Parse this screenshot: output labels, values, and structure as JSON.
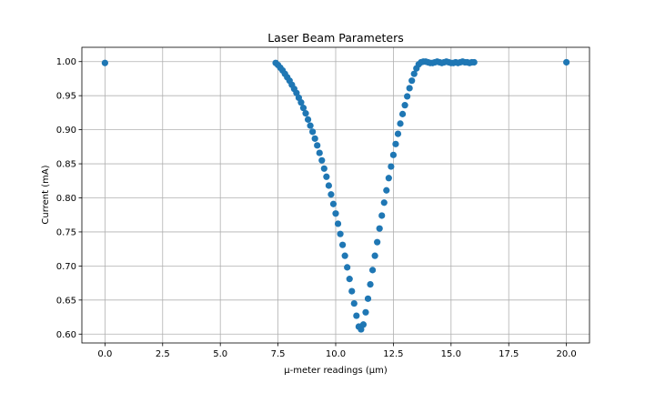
{
  "chart_data": {
    "type": "scatter",
    "title": "Laser Beam Parameters",
    "xlabel": "μ-meter readings (μm)",
    "ylabel": "Current (mA)",
    "xlim": [
      -1.0,
      21.0
    ],
    "ylim": [
      0.587,
      1.021
    ],
    "xticks": [
      "0.0",
      "2.5",
      "5.0",
      "7.5",
      "10.0",
      "12.5",
      "15.0",
      "17.5",
      "20.0"
    ],
    "yticks": [
      "0.60",
      "0.65",
      "0.70",
      "0.75",
      "0.80",
      "0.85",
      "0.90",
      "0.95",
      "1.00"
    ],
    "grid": true,
    "legend": null,
    "color": "#1f77b4",
    "series": [
      {
        "x": [
          0.0,
          7.4,
          7.5,
          7.6,
          7.7,
          7.8,
          7.9,
          8.0,
          8.1,
          8.2,
          8.3,
          8.4,
          8.5,
          8.6,
          8.7,
          8.8,
          8.9,
          9.0,
          9.1,
          9.2,
          9.3,
          9.4,
          9.5,
          9.6,
          9.7,
          9.8,
          9.9,
          10.0,
          10.1,
          10.2,
          10.3,
          10.4,
          10.5,
          10.6,
          10.7,
          10.8,
          10.9,
          11.0,
          11.1,
          11.2,
          11.3,
          11.4,
          11.5,
          11.6,
          11.7,
          11.8,
          11.9,
          12.0,
          12.1,
          12.2,
          12.3,
          12.4,
          12.5,
          12.6,
          12.7,
          12.8,
          12.9,
          13.0,
          13.1,
          13.2,
          13.3,
          13.4,
          13.5,
          13.6,
          13.7,
          13.8,
          13.9,
          14.0,
          14.1,
          14.2,
          14.3,
          14.4,
          14.5,
          14.6,
          14.7,
          14.8,
          14.9,
          15.0,
          15.1,
          15.2,
          15.3,
          15.4,
          15.5,
          15.6,
          15.7,
          15.8,
          15.9,
          16.0,
          20.0
        ],
        "y": [
          0.998,
          0.998,
          0.995,
          0.991,
          0.987,
          0.982,
          0.977,
          0.972,
          0.966,
          0.96,
          0.954,
          0.947,
          0.94,
          0.932,
          0.924,
          0.915,
          0.906,
          0.897,
          0.887,
          0.877,
          0.866,
          0.855,
          0.843,
          0.831,
          0.818,
          0.805,
          0.791,
          0.777,
          0.762,
          0.747,
          0.731,
          0.715,
          0.698,
          0.681,
          0.663,
          0.645,
          0.627,
          0.611,
          0.607,
          0.614,
          0.632,
          0.652,
          0.673,
          0.694,
          0.715,
          0.735,
          0.755,
          0.774,
          0.793,
          0.811,
          0.829,
          0.846,
          0.863,
          0.879,
          0.894,
          0.909,
          0.923,
          0.936,
          0.949,
          0.961,
          0.972,
          0.982,
          0.99,
          0.996,
          0.999,
          1.0,
          1.0,
          0.999,
          0.998,
          0.998,
          0.999,
          1.0,
          0.999,
          0.998,
          0.999,
          1.0,
          0.999,
          0.998,
          0.998,
          0.999,
          0.998,
          0.999,
          1.0,
          0.999,
          0.999,
          0.998,
          0.999,
          0.999,
          0.999
        ]
      }
    ]
  }
}
